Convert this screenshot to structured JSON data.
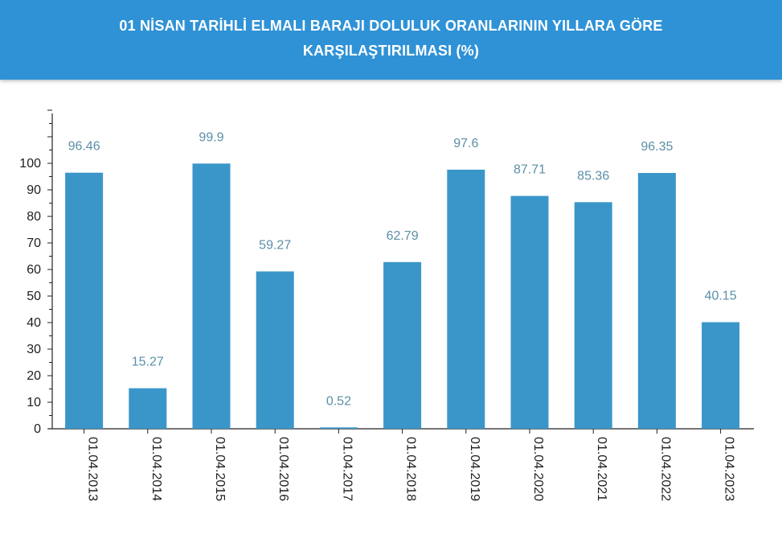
{
  "header": {
    "title_line1": "01 NİSAN TARİHLİ ELMALI BARAJI DOLULUK ORANLARININ YILLARA GÖRE",
    "title_line2": "KARŞILAŞTIRILMASI (%)"
  },
  "colors": {
    "header_bg": "#2f92d6",
    "bar": "#3a96c9",
    "data_label": "#5b8fa6"
  },
  "chart_data": {
    "type": "bar",
    "title": "01 NİSAN TARİHLİ ELMALI BARAJI DOLULUK ORANLARININ YILLARA GÖRE KARŞILAŞTIRILMASI (%)",
    "categories": [
      "01.04.2013",
      "01.04.2014",
      "01.04.2015",
      "01.04.2016",
      "01.04.2017",
      "01.04.2018",
      "01.04.2019",
      "01.04.2020",
      "01.04.2021",
      "01.04.2022",
      "01.04.2023"
    ],
    "values": [
      96.46,
      15.27,
      99.9,
      59.27,
      0.52,
      62.79,
      97.6,
      87.71,
      85.36,
      96.35,
      40.15
    ],
    "data_labels": [
      "96.46",
      "15.27",
      "99.9",
      "59.27",
      "0.52",
      "62.79",
      "97.6",
      "87.71",
      "85.36",
      "96.35",
      "40.15"
    ],
    "yticks": [
      0,
      10,
      20,
      30,
      40,
      50,
      60,
      70,
      80,
      90,
      100
    ],
    "ylim": [
      0,
      120
    ],
    "xlabel": "",
    "ylabel": "",
    "grid": false,
    "legend": "none"
  }
}
